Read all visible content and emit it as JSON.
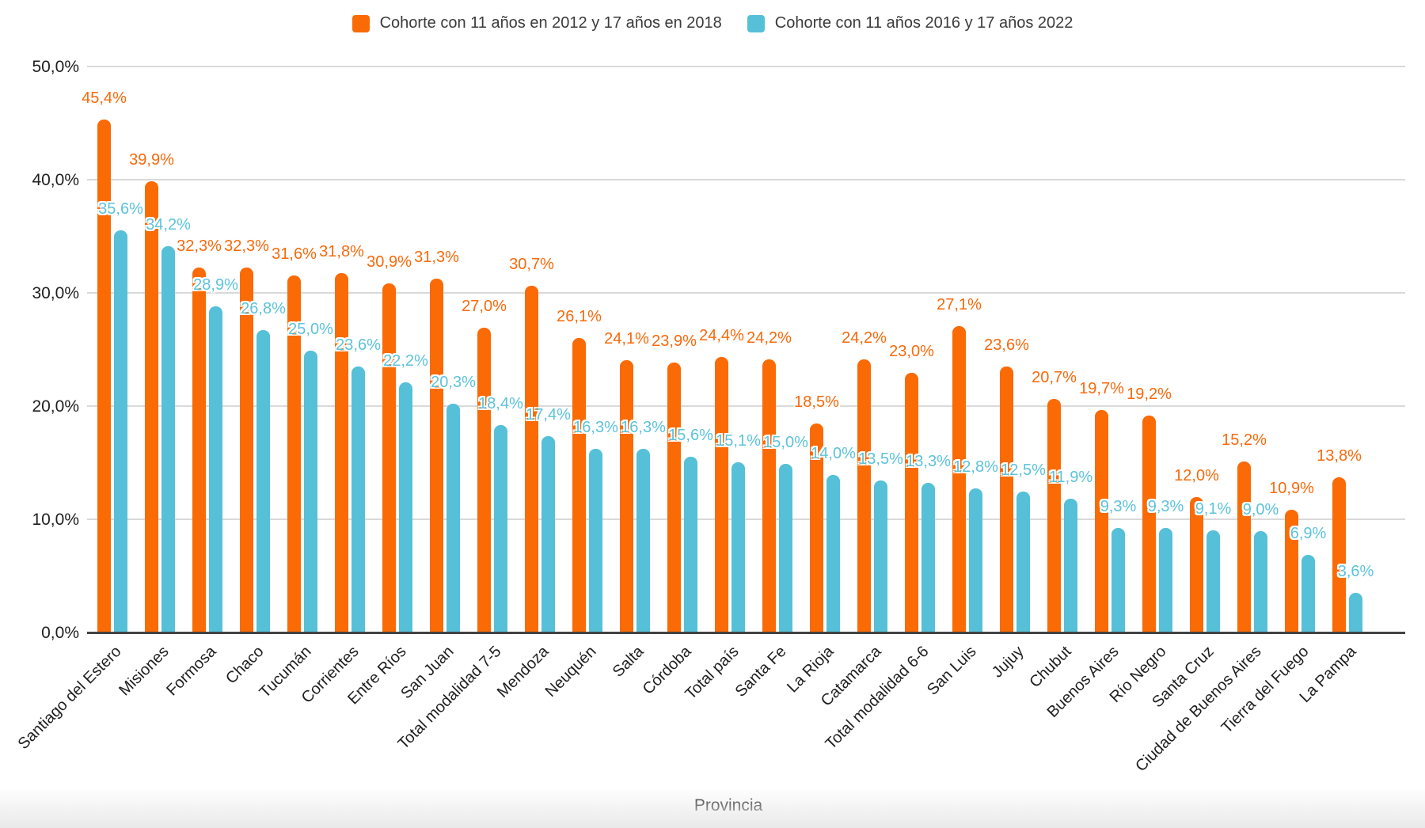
{
  "chart_data": {
    "type": "bar",
    "title": "",
    "xlabel": "Provincia",
    "ylabel": "",
    "ylim": [
      0,
      50
    ],
    "grid": true,
    "legend_position": "top",
    "value_format": "comma-decimal-percent",
    "ytick_values": [
      0,
      10,
      20,
      30,
      40,
      50
    ],
    "ytick_labels": [
      "0,0%",
      "10,0%",
      "20,0%",
      "30,0%",
      "40,0%",
      "50,0%"
    ],
    "categories": [
      "Santiago del Estero",
      "Misiones",
      "Formosa",
      "Chaco",
      "Tucumán",
      "Corrientes",
      "Entre Ríos",
      "San Juan",
      "Total modalidad 7-5",
      "Mendoza",
      "Neuquén",
      "Salta",
      "Córdoba",
      "Total país",
      "Santa Fe",
      "La Rioja",
      "Catamarca",
      "Total modalidad 6-6",
      "San Luis",
      "Jujuy",
      "Chubut",
      "Buenos Aires",
      "Río Negro",
      "Santa Cruz",
      "Ciudad de Buenos Aires",
      "Tierra del Fuego",
      "La Pampa"
    ],
    "series": [
      {
        "name": "Cohorte con 11 años en 2012 y 17 años en 2018",
        "key": "cohorte-2012-2018",
        "color": "#FA6A05",
        "label_color": "#F8690B",
        "values": [
          45.4,
          39.9,
          32.3,
          32.3,
          31.6,
          31.8,
          30.9,
          31.3,
          27.0,
          30.7,
          26.1,
          24.1,
          23.9,
          24.4,
          24.2,
          18.5,
          24.2,
          23.0,
          27.1,
          23.6,
          20.7,
          19.7,
          19.2,
          12.0,
          15.2,
          10.9,
          13.8
        ],
        "labels": [
          "45,4%",
          "39,9%",
          "32,3%",
          "32,3%",
          "31,6%",
          "31,8%",
          "30,9%",
          "31,3%",
          "27,0%",
          "30,7%",
          "26,1%",
          "24,1%",
          "23,9%",
          "24,4%",
          "24,2%",
          "18,5%",
          "24,2%",
          "23,0%",
          "27,1%",
          "23,6%",
          "20,7%",
          "19,7%",
          "19,2%",
          "12,0%",
          "15,2%",
          "10,9%",
          "13,8%"
        ]
      },
      {
        "name": "Cohorte con 11 años 2016 y 17 años 2022",
        "key": "cohorte-2016-2022",
        "color": "#55C0D7",
        "label_color": "#5CC3DA",
        "values": [
          35.6,
          34.2,
          28.9,
          26.8,
          25.0,
          23.6,
          22.2,
          20.3,
          18.4,
          17.4,
          16.3,
          16.3,
          15.6,
          15.1,
          15.0,
          14.0,
          13.5,
          13.3,
          12.8,
          12.5,
          11.9,
          9.3,
          9.3,
          9.1,
          9.0,
          6.9,
          3.6
        ],
        "labels": [
          "35,6%",
          "34,2%",
          "28,9%",
          "26,8%",
          "25,0%",
          "23,6%",
          "22,2%",
          "20,3%",
          "18,4%",
          "17,4%",
          "16,3%",
          "16,3%",
          "15,6%",
          "15,1%",
          "15,0%",
          "14,0%",
          "13,5%",
          "13,3%",
          "12,8%",
          "12,5%",
          "11,9%",
          "9,3%",
          "9,3%",
          "9,1%",
          "9,0%",
          "6,9%",
          "3,6%"
        ]
      }
    ]
  }
}
